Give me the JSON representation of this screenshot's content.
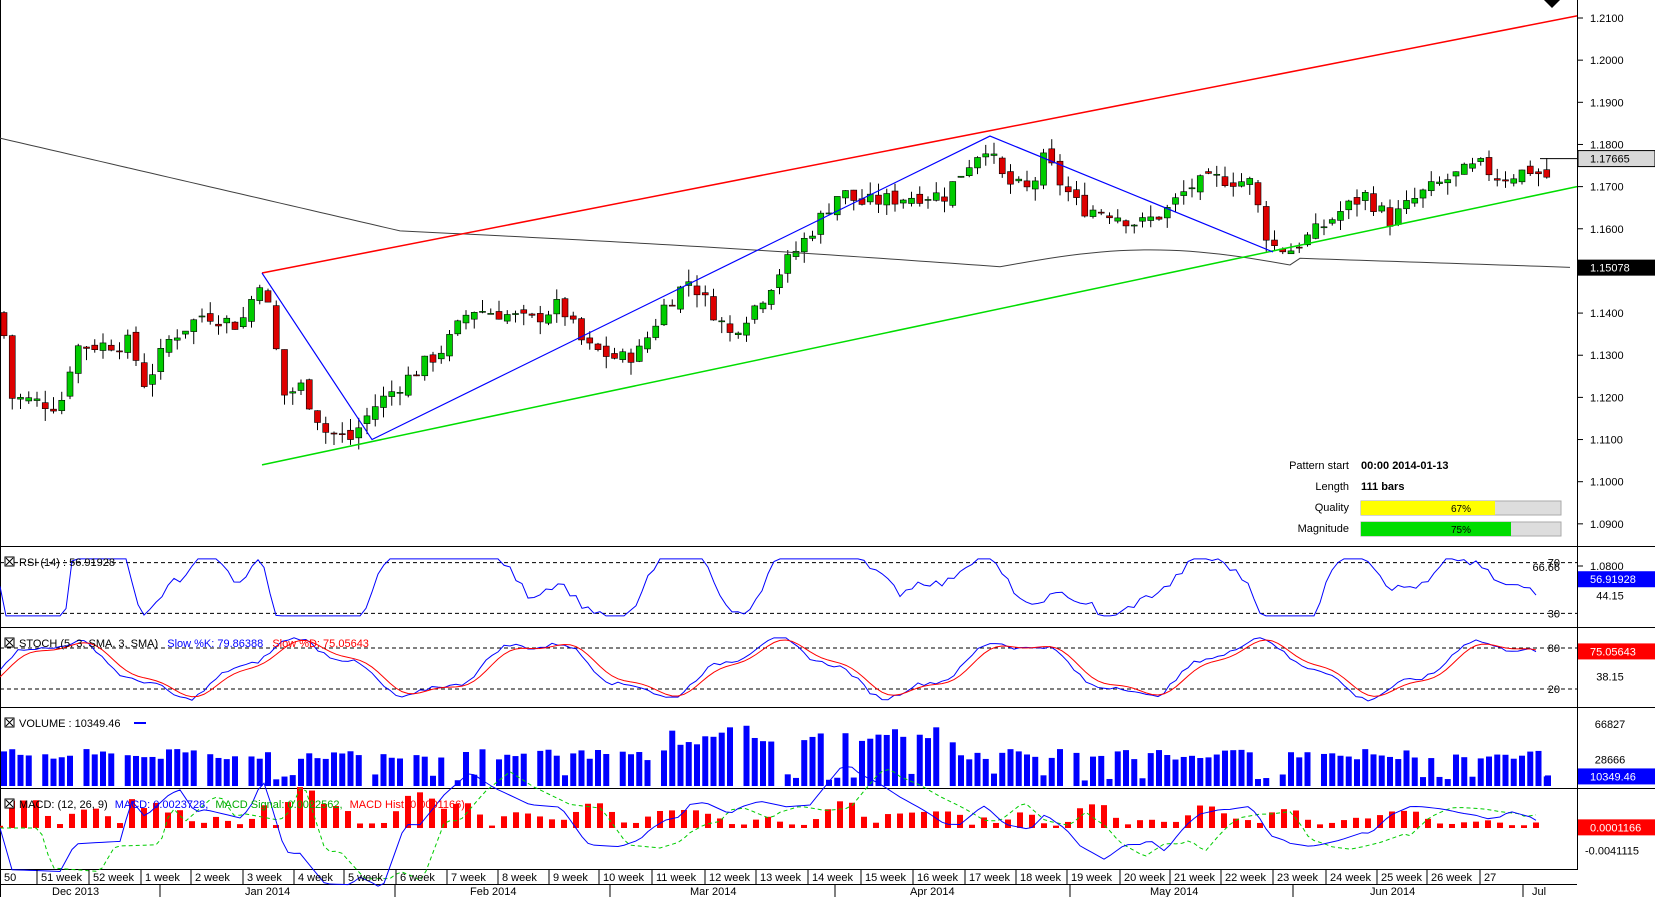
{
  "price_panel": {
    "y_ticks": [
      "1.2100",
      "1.2000",
      "1.1900",
      "1.1800",
      "1.1700",
      "1.1600",
      "1.1500",
      "1.1400",
      "1.1300",
      "1.1200",
      "1.1100",
      "1.1000",
      "1.0900",
      "1.0800"
    ],
    "last_price_label": "1.17665",
    "ma_price_label": "1.15078",
    "info": {
      "pattern_start_label": "Pattern start",
      "pattern_start_value": "00:00 2014-01-13",
      "length_label": "Length",
      "length_value": "111 bars",
      "quality_label": "Quality",
      "quality_value": "67%",
      "quality_fraction": 0.67,
      "magnitude_label": "Magnitude",
      "magnitude_value": "75%",
      "magnitude_fraction": 0.75
    }
  },
  "rsi_panel": {
    "legend": "RSI (14) : 56.91928",
    "ticks": [
      "70",
      "66.66",
      "44.15",
      "30"
    ],
    "value_label": "56.91928"
  },
  "stoch_panel": {
    "legend_prefix": "STOCH (5, 3, SMA, 3, SMA)",
    "legend_k": "Slow %K: 79.86388",
    "legend_d": "Slow %D: 75.05643",
    "ticks": [
      "80",
      "38.15",
      "20"
    ],
    "value_label": "75.05643"
  },
  "volume_panel": {
    "legend": "VOLUME : 10349.46",
    "ticks": [
      "66827",
      "28666"
    ],
    "value_label": "10349.46"
  },
  "macd_panel": {
    "legend_prefix": "MACD: (12, 26, 9)",
    "legend_macd": "MACD: 0.0023728,",
    "legend_signal": "MACD Signal: 0.0022562,",
    "legend_hist": "MACD Hist: 0.0001166)",
    "ticks": [
      "0.0001166",
      "-0.0041115"
    ],
    "value_label": "0.0001166"
  },
  "x_axis": {
    "weeks": [
      "50",
      "51 week",
      "52 week",
      "1 week",
      "2 week",
      "3 week",
      "4 week",
      "5 week",
      "6 week",
      "7 week",
      "8 week",
      "9 week",
      "10 week",
      "11 week",
      "12 week",
      "13 week",
      "14 week",
      "15 week",
      "16 week",
      "17 week",
      "18 week",
      "19 week",
      "20 week",
      "21 week",
      "22 week",
      "23 week",
      "24 week",
      "25 week",
      "26 week",
      "27"
    ],
    "months": [
      "Dec 2013",
      "Jan 2014",
      "Feb 2014",
      "Mar 2014",
      "Apr 2014",
      "May 2014",
      "Jun 2014",
      "Jul"
    ]
  },
  "colors": {
    "up": "#00cc00",
    "down": "#dd0000",
    "resistance": "#ff0000",
    "support": "#00dd00",
    "zigzag": "#0000ff",
    "ma": "#404040",
    "rsi": "#0000ff",
    "volume": "#0000ff",
    "quality_fill": "#ffff00",
    "magnitude_fill": "#00dd00"
  },
  "chart_data": {
    "type": "candlestick",
    "timeframe": "daily",
    "ylim": [
      1.078,
      1.213
    ],
    "pattern_lines": {
      "resistance": [
        [
          "2014-01-13",
          1.1495
        ],
        [
          "2014-07-01",
          1.2105
        ]
      ],
      "support": [
        [
          "2014-01-13",
          1.104
        ],
        [
          "2014-07-01",
          1.17
        ]
      ]
    },
    "zigzag": [
      [
        "2014-01-13",
        1.1495
      ],
      [
        "2014-02-03",
        1.11
      ],
      [
        "2014-04-15",
        1.182
      ],
      [
        "2014-05-28",
        1.154
      ]
    ],
    "ohlc_close_sample": [
      [
        "2013-12-12",
        1.143
      ],
      [
        "2013-12-20",
        1.12
      ],
      [
        "2013-12-31",
        1.132
      ],
      [
        "2014-01-10",
        1.136
      ],
      [
        "2014-01-13",
        1.1495
      ],
      [
        "2014-01-20",
        1.12
      ],
      [
        "2014-02-03",
        1.11
      ],
      [
        "2014-02-10",
        1.131
      ],
      [
        "2014-02-17",
        1.141
      ],
      [
        "2014-02-24",
        1.139
      ],
      [
        "2014-03-03",
        1.132
      ],
      [
        "2014-03-10",
        1.145
      ],
      [
        "2014-03-17",
        1.142
      ],
      [
        "2014-03-24",
        1.16
      ],
      [
        "2014-03-31",
        1.169
      ],
      [
        "2014-04-07",
        1.168
      ],
      [
        "2014-04-14",
        1.179
      ],
      [
        "2014-04-21",
        1.17
      ],
      [
        "2014-04-28",
        1.163
      ],
      [
        "2014-05-05",
        1.161
      ],
      [
        "2014-05-12",
        1.172
      ],
      [
        "2014-05-19",
        1.168
      ],
      [
        "2014-05-26",
        1.156
      ],
      [
        "2014-06-02",
        1.162
      ],
      [
        "2014-06-09",
        1.168
      ],
      [
        "2014-06-16",
        1.174
      ],
      [
        "2014-06-23",
        1.175
      ],
      [
        "2014-06-30",
        1.17665
      ]
    ],
    "last": 1.17665,
    "moving_average_last": 1.15078
  }
}
